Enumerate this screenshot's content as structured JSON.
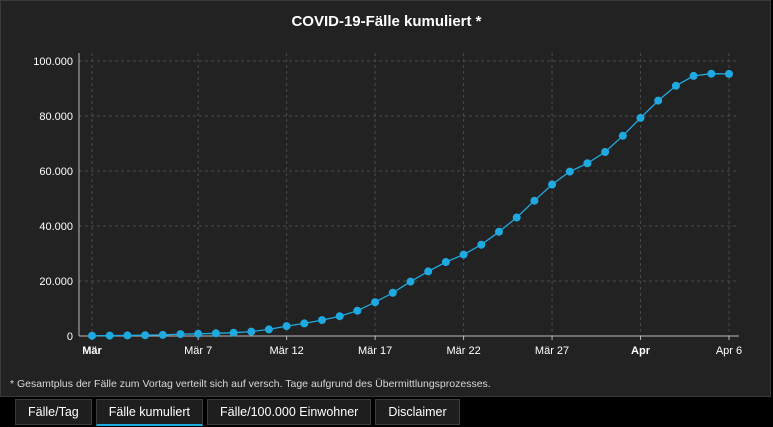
{
  "colors": {
    "series": "#1fa9e1",
    "grid": "#4a4a4a",
    "text": "#ffffff"
  },
  "footnote": "* Gesamtplus der Fälle zum Vortag verteilt sich auf versch. Tage aufgrund des Übermittlungsprozesses.",
  "tabs": [
    {
      "label": "Fälle/Tag",
      "active": false
    },
    {
      "label": "Fälle kumuliert",
      "active": true
    },
    {
      "label": "Fälle/100.000 Einwohner",
      "active": false
    },
    {
      "label": "Disclaimer",
      "active": false
    }
  ],
  "chart_data": {
    "type": "line",
    "title": "COVID-19-Fälle kumuliert *",
    "xlabel": "",
    "ylabel": "",
    "ylim": [
      0,
      100000
    ],
    "yticks": [
      {
        "value": 0,
        "label": "0"
      },
      {
        "value": 20000,
        "label": "20.000"
      },
      {
        "value": 40000,
        "label": "40.000"
      },
      {
        "value": 60000,
        "label": "60.000"
      },
      {
        "value": 80000,
        "label": "80.000"
      },
      {
        "value": 100000,
        "label": "100.000"
      }
    ],
    "xticks": [
      {
        "date": "2020-03-01",
        "label": "Mär",
        "bold": true
      },
      {
        "date": "2020-03-07",
        "label": "Mär 7",
        "bold": false
      },
      {
        "date": "2020-03-12",
        "label": "Mär 12",
        "bold": false
      },
      {
        "date": "2020-03-17",
        "label": "Mär 17",
        "bold": false
      },
      {
        "date": "2020-03-22",
        "label": "Mär 22",
        "bold": false
      },
      {
        "date": "2020-03-27",
        "label": "Mär 27",
        "bold": false
      },
      {
        "date": "2020-04-01",
        "label": "Apr",
        "bold": true
      },
      {
        "date": "2020-04-06",
        "label": "Apr 6",
        "bold": false
      }
    ],
    "grid": true,
    "legend": "none",
    "x": [
      "2020-03-01",
      "2020-03-02",
      "2020-03-03",
      "2020-03-04",
      "2020-03-05",
      "2020-03-06",
      "2020-03-07",
      "2020-03-08",
      "2020-03-09",
      "2020-03-10",
      "2020-03-11",
      "2020-03-12",
      "2020-03-13",
      "2020-03-14",
      "2020-03-15",
      "2020-03-16",
      "2020-03-17",
      "2020-03-18",
      "2020-03-19",
      "2020-03-20",
      "2020-03-21",
      "2020-03-22",
      "2020-03-23",
      "2020-03-24",
      "2020-03-25",
      "2020-03-26",
      "2020-03-27",
      "2020-03-28",
      "2020-03-29",
      "2020-03-30",
      "2020-03-31",
      "2020-04-01",
      "2020-04-02",
      "2020-04-03",
      "2020-04-04",
      "2020-04-05",
      "2020-04-06"
    ],
    "values": [
      100,
      150,
      200,
      300,
      400,
      700,
      800,
      1000,
      1200,
      1600,
      2400,
      3600,
      4600,
      5800,
      7200,
      9200,
      12300,
      15700,
      19800,
      23500,
      26900,
      29600,
      33200,
      37900,
      43100,
      49200,
      55100,
      59800,
      62800,
      66900,
      72800,
      79300,
      85600,
      91000,
      94600,
      95400,
      95300
    ]
  }
}
